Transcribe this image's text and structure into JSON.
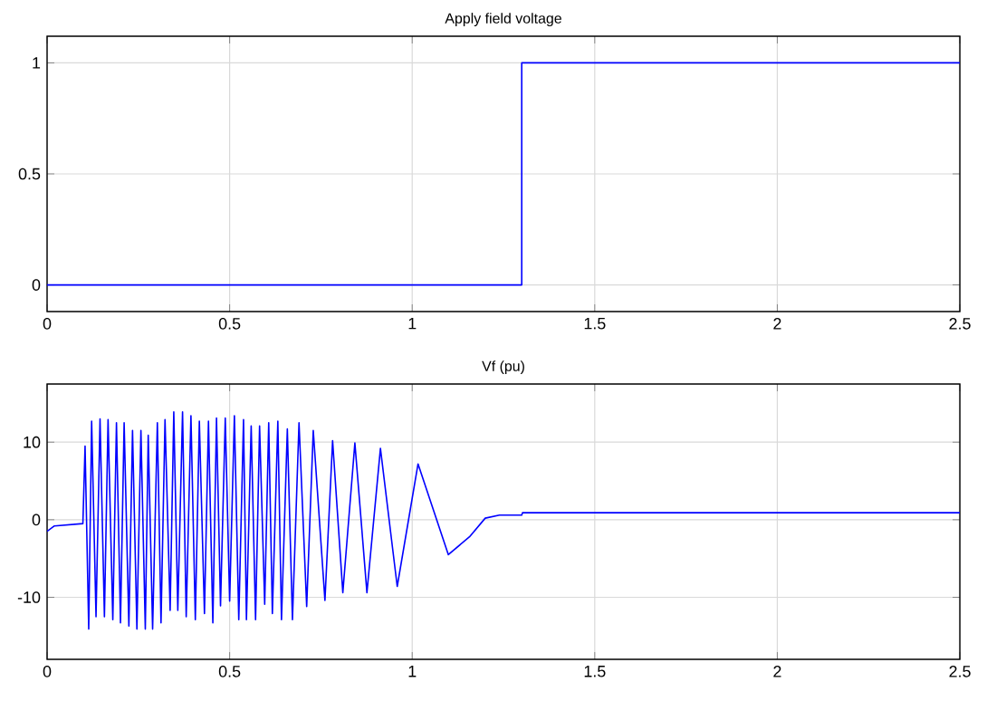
{
  "chart_data": [
    {
      "type": "line",
      "title": "Apply field voltage",
      "grid": true,
      "xlim": [
        0,
        2.5
      ],
      "ylim": [
        -0.12,
        1.12
      ],
      "xticks": [
        0,
        0.5,
        1,
        1.5,
        2,
        2.5
      ],
      "yticks": [
        0,
        0.5,
        1
      ],
      "series": [
        {
          "color": "#0000ff",
          "x": [
            0,
            1.3,
            1.3,
            2.5
          ],
          "values": [
            0,
            0,
            1,
            1
          ]
        }
      ]
    },
    {
      "type": "line",
      "title": "Vf (pu)",
      "grid": true,
      "xlim": [
        0,
        2.5
      ],
      "ylim": [
        -18,
        17.5
      ],
      "xticks": [
        0,
        0.5,
        1,
        1.5,
        2,
        2.5
      ],
      "yticks": [
        -10,
        0,
        10
      ],
      "series": [
        {
          "color": "#0000ff",
          "x": [
            0,
            0.02,
            0.098,
            0.104,
            0.114,
            0.122,
            0.134,
            0.145,
            0.157,
            0.167,
            0.18,
            0.19,
            0.201,
            0.211,
            0.224,
            0.234,
            0.246,
            0.257,
            0.269,
            0.277,
            0.289,
            0.302,
            0.312,
            0.323,
            0.337,
            0.347,
            0.358,
            0.371,
            0.381,
            0.394,
            0.406,
            0.417,
            0.431,
            0.442,
            0.454,
            0.464,
            0.475,
            0.488,
            0.5,
            0.513,
            0.525,
            0.538,
            0.546,
            0.559,
            0.571,
            0.582,
            0.596,
            0.607,
            0.617,
            0.632,
            0.642,
            0.658,
            0.672,
            0.69,
            0.711,
            0.729,
            0.761,
            0.782,
            0.81,
            0.843,
            0.876,
            0.913,
            0.959,
            1.016,
            1.099,
            1.157,
            1.2,
            1.239,
            1.3,
            1.302,
            2.5
          ],
          "values": [
            -1.5,
            -0.8,
            -0.5,
            9.5,
            -14.1,
            12.7,
            -12.5,
            13.0,
            -12.5,
            12.9,
            -12.9,
            12.5,
            -13.3,
            12.5,
            -13.7,
            11.5,
            -14.1,
            11.5,
            -14.1,
            10.9,
            -14.1,
            12.5,
            -13.3,
            12.9,
            -11.7,
            13.9,
            -11.7,
            13.9,
            -12.5,
            13.4,
            -12.9,
            12.7,
            -12.1,
            12.7,
            -13.3,
            13.1,
            -11.1,
            13.1,
            -10.5,
            13.4,
            -12.9,
            12.9,
            -12.9,
            12.1,
            -12.9,
            12.1,
            -10.9,
            12.5,
            -12.1,
            12.7,
            -12.9,
            11.7,
            -12.9,
            12.5,
            -11.2,
            11.5,
            -10.4,
            10.2,
            -9.4,
            9.9,
            -9.4,
            9.2,
            -8.6,
            7.2,
            -4.5,
            -2.2,
            0.2,
            0.6,
            0.6,
            0.9,
            0.9
          ]
        }
      ]
    }
  ]
}
